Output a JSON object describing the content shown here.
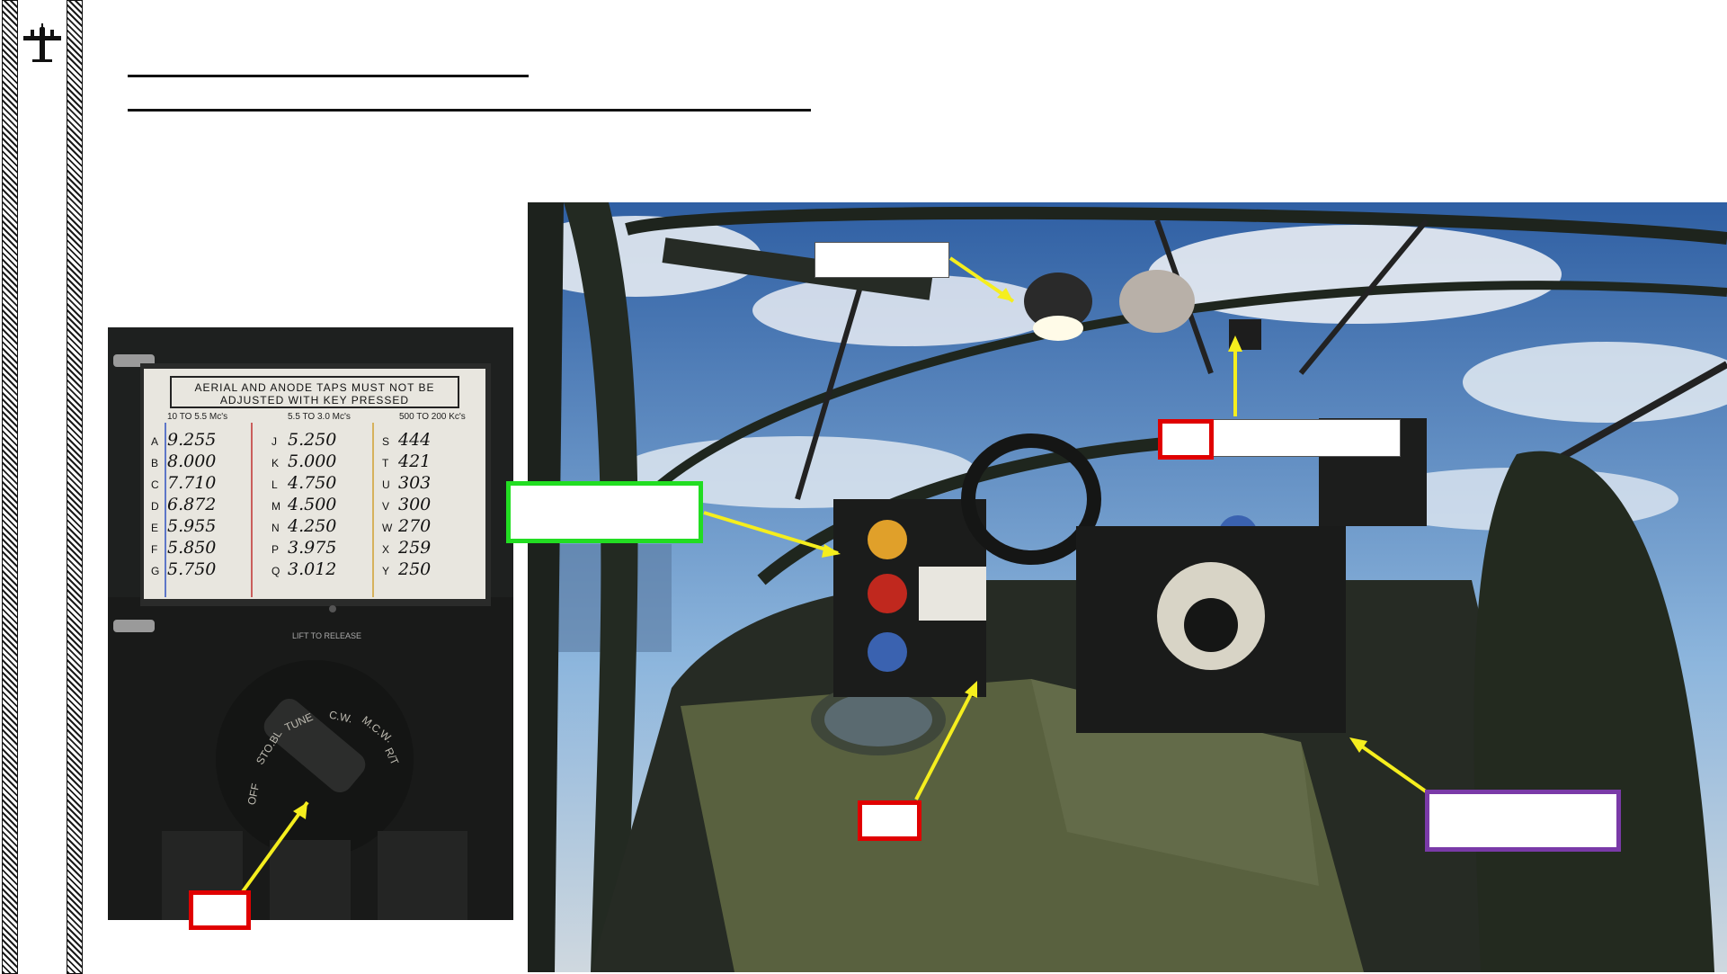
{
  "colors": {
    "callout_red": "#e00000",
    "callout_green": "#22dd22",
    "callout_purple": "#7a3aa8",
    "arrow_yellow": "#f5ee1e"
  },
  "icons": {
    "header": "airplane-icon"
  },
  "inset": {
    "card_title_line1": "AERIAL AND ANODE TAPS MUST NOT BE",
    "card_title_line2": "ADJUSTED WITH KEY PRESSED",
    "column_headers": [
      "10 TO 5.5 Mc's",
      "5.5 TO 3.0 Mc's",
      "500 TO 200 Kc's"
    ],
    "rows_col1": [
      {
        "key": "A",
        "value": "9.255"
      },
      {
        "key": "B",
        "value": "8.000"
      },
      {
        "key": "C",
        "value": "7.710"
      },
      {
        "key": "D",
        "value": "6.872"
      },
      {
        "key": "E",
        "value": "5.955"
      },
      {
        "key": "F",
        "value": "5.850"
      },
      {
        "key": "G",
        "value": "5.750"
      }
    ],
    "rows_col2": [
      {
        "key": "J",
        "value": "5.250"
      },
      {
        "key": "K",
        "value": "5.000"
      },
      {
        "key": "L",
        "value": "4.750"
      },
      {
        "key": "M",
        "value": "4.500"
      },
      {
        "key": "N",
        "value": "4.250"
      },
      {
        "key": "P",
        "value": "3.975"
      },
      {
        "key": "Q",
        "value": "3.012"
      }
    ],
    "rows_col3": [
      {
        "key": "S",
        "value": "444"
      },
      {
        "key": "T",
        "value": "421"
      },
      {
        "key": "U",
        "value": "303"
      },
      {
        "key": "V",
        "value": "300"
      },
      {
        "key": "W",
        "value": "270"
      },
      {
        "key": "X",
        "value": "259"
      },
      {
        "key": "Y",
        "value": "250"
      }
    ],
    "release_label": "LIFT TO RELEASE",
    "switch_labels": [
      "OFF",
      "STO.BL",
      "TUNE",
      "C.W.",
      "M.C.W.",
      "R/T"
    ]
  }
}
